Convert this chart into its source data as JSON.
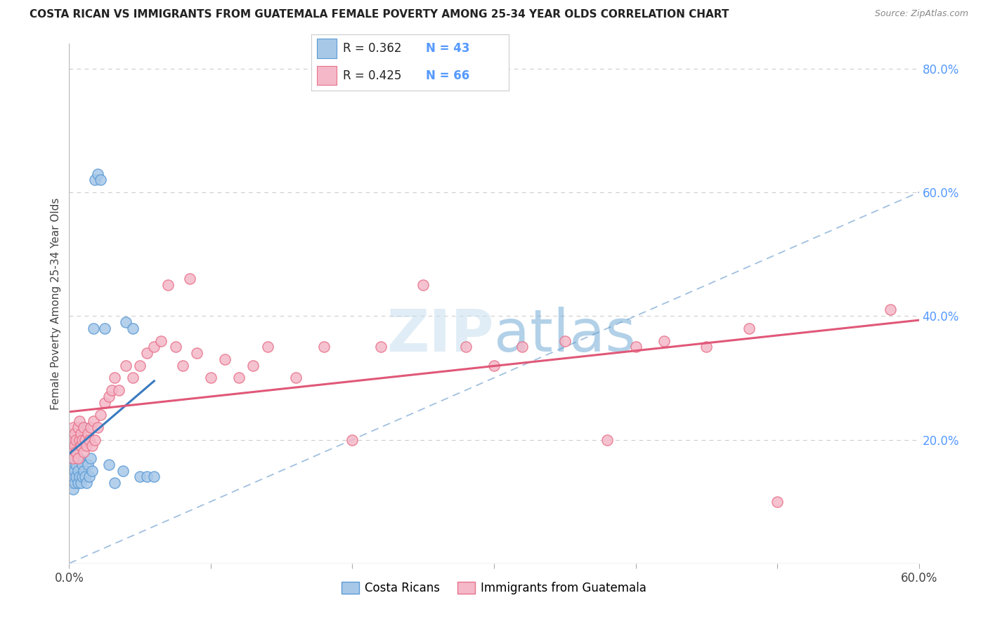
{
  "title": "COSTA RICAN VS IMMIGRANTS FROM GUATEMALA FEMALE POVERTY AMONG 25-34 YEAR OLDS CORRELATION CHART",
  "source": "Source: ZipAtlas.com",
  "ylabel": "Female Poverty Among 25-34 Year Olds",
  "legend1_R": "0.362",
  "legend1_N": "43",
  "legend2_R": "0.425",
  "legend2_N": "66",
  "color_blue_fill": "#a8c8e8",
  "color_blue_edge": "#5b9bd5",
  "color_pink_fill": "#f4b8c8",
  "color_pink_edge": "#e8728a",
  "color_blue_line": "#3a7abf",
  "color_pink_line": "#e05878",
  "color_ref_line": "#a0c0e0",
  "watermark_color": "#c8dff0",
  "right_tick_color": "#5599ff",
  "xlim": [
    0.0,
    0.6
  ],
  "ylim": [
    0.0,
    0.84
  ],
  "blue_x": [
    0.001,
    0.001,
    0.002,
    0.002,
    0.002,
    0.003,
    0.003,
    0.003,
    0.004,
    0.004,
    0.004,
    0.005,
    0.005,
    0.005,
    0.006,
    0.006,
    0.007,
    0.007,
    0.008,
    0.008,
    0.009,
    0.009,
    0.01,
    0.01,
    0.011,
    0.012,
    0.013,
    0.014,
    0.015,
    0.016,
    0.017,
    0.018,
    0.02,
    0.022,
    0.025,
    0.028,
    0.032,
    0.038,
    0.04,
    0.045,
    0.05,
    0.055,
    0.06
  ],
  "blue_y": [
    0.14,
    0.16,
    0.13,
    0.15,
    0.17,
    0.12,
    0.14,
    0.18,
    0.13,
    0.15,
    0.2,
    0.14,
    0.16,
    0.19,
    0.13,
    0.15,
    0.14,
    0.17,
    0.13,
    0.2,
    0.14,
    0.16,
    0.15,
    0.22,
    0.14,
    0.13,
    0.16,
    0.14,
    0.17,
    0.15,
    0.38,
    0.62,
    0.63,
    0.62,
    0.38,
    0.16,
    0.13,
    0.15,
    0.39,
    0.38,
    0.14,
    0.14,
    0.14
  ],
  "pink_x": [
    0.001,
    0.001,
    0.002,
    0.002,
    0.003,
    0.003,
    0.004,
    0.004,
    0.005,
    0.005,
    0.006,
    0.006,
    0.007,
    0.007,
    0.008,
    0.008,
    0.009,
    0.01,
    0.01,
    0.011,
    0.012,
    0.013,
    0.014,
    0.015,
    0.016,
    0.017,
    0.018,
    0.02,
    0.022,
    0.025,
    0.028,
    0.03,
    0.032,
    0.035,
    0.04,
    0.045,
    0.05,
    0.055,
    0.06,
    0.065,
    0.07,
    0.075,
    0.08,
    0.085,
    0.09,
    0.1,
    0.11,
    0.12,
    0.13,
    0.14,
    0.16,
    0.18,
    0.2,
    0.22,
    0.25,
    0.28,
    0.3,
    0.32,
    0.35,
    0.38,
    0.4,
    0.42,
    0.45,
    0.48,
    0.5,
    0.58
  ],
  "pink_y": [
    0.19,
    0.21,
    0.18,
    0.2,
    0.17,
    0.22,
    0.19,
    0.21,
    0.18,
    0.2,
    0.17,
    0.22,
    0.2,
    0.23,
    0.19,
    0.21,
    0.2,
    0.18,
    0.22,
    0.2,
    0.19,
    0.21,
    0.2,
    0.22,
    0.19,
    0.23,
    0.2,
    0.22,
    0.24,
    0.26,
    0.27,
    0.28,
    0.3,
    0.28,
    0.32,
    0.3,
    0.32,
    0.34,
    0.35,
    0.36,
    0.45,
    0.35,
    0.32,
    0.46,
    0.34,
    0.3,
    0.33,
    0.3,
    0.32,
    0.35,
    0.3,
    0.35,
    0.2,
    0.35,
    0.45,
    0.35,
    0.32,
    0.35,
    0.36,
    0.2,
    0.35,
    0.36,
    0.35,
    0.38,
    0.1,
    0.41
  ],
  "xtick_positions": [
    0.0,
    0.1,
    0.2,
    0.3,
    0.4,
    0.5,
    0.6
  ],
  "ytick_right": [
    0.2,
    0.4,
    0.6,
    0.8
  ],
  "background_color": "#ffffff"
}
